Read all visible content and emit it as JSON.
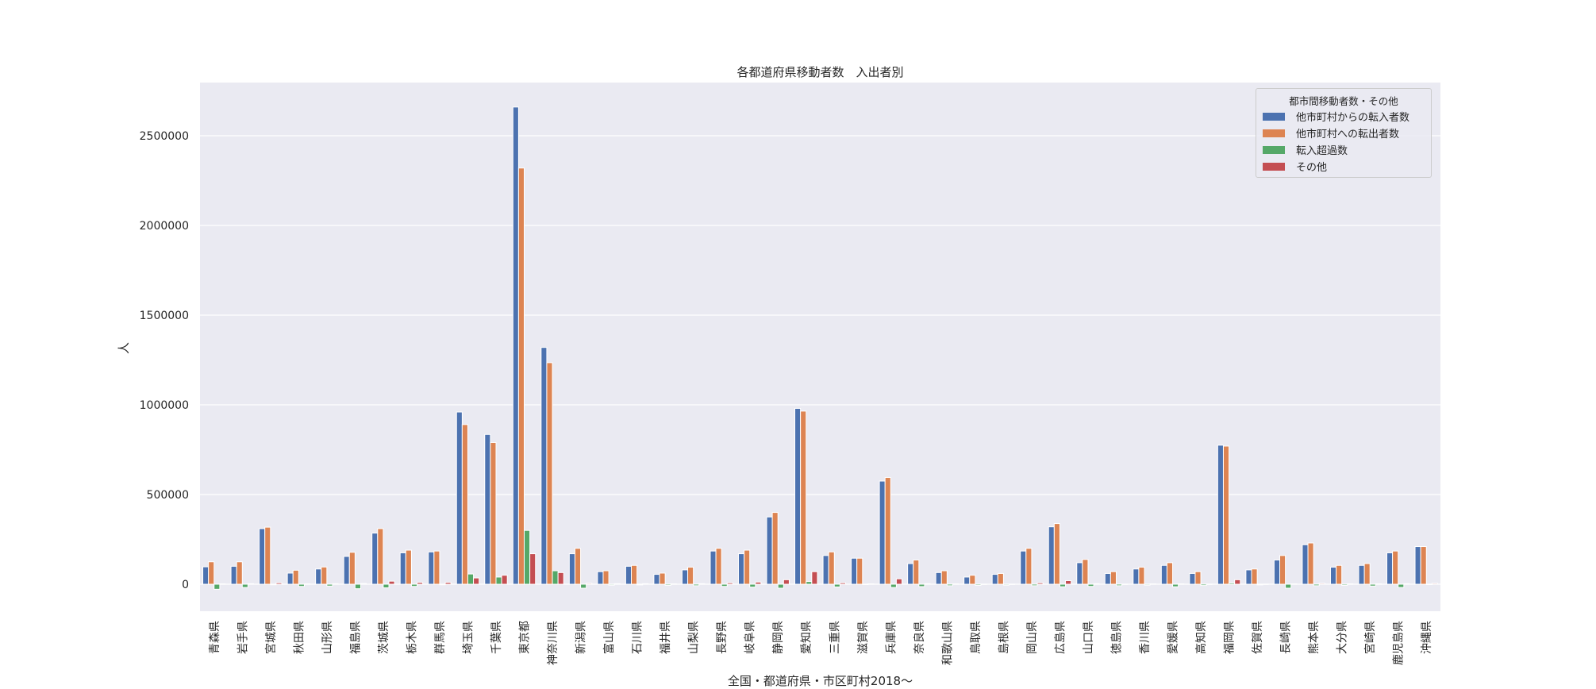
{
  "chart_data": {
    "type": "bar",
    "title": "各都道府県移動者数　入出者別",
    "xlabel": "全国・都道府県・市区町村2018〜",
    "ylabel": "人",
    "ylim": [
      -150000,
      2750000
    ],
    "yticks": [
      0,
      500000,
      1000000,
      1500000,
      2000000,
      2500000
    ],
    "ytick_labels": [
      "0",
      "500000",
      "1000000",
      "1500000",
      "2000000",
      "2500000"
    ],
    "grid": true,
    "legend_position": "upper right",
    "legend_title": "都市間移動者数・その他",
    "categories": [
      "青森県",
      "岩手県",
      "宮城県",
      "秋田県",
      "山形県",
      "福島県",
      "茨城県",
      "栃木県",
      "群馬県",
      "埼玉県",
      "千葉県",
      "東京都",
      "神奈川県",
      "新潟県",
      "富山県",
      "石川県",
      "福井県",
      "山梨県",
      "長野県",
      "岐阜県",
      "静岡県",
      "愛知県",
      "三重県",
      "滋賀県",
      "兵庫県",
      "奈良県",
      "和歌山県",
      "鳥取県",
      "島根県",
      "岡山県",
      "広島県",
      "山口県",
      "徳島県",
      "香川県",
      "愛媛県",
      "高知県",
      "福岡県",
      "佐賀県",
      "長崎県",
      "熊本県",
      "大分県",
      "宮崎県",
      "鹿児島県",
      "沖縄県"
    ],
    "series": [
      {
        "name": "他市町村からの転入者数",
        "color": "#4c72b0",
        "values": [
          97000,
          100000,
          310000,
          62000,
          85000,
          155000,
          285000,
          175000,
          180000,
          960000,
          835000,
          2660000,
          1320000,
          170000,
          70000,
          100000,
          55000,
          80000,
          185000,
          170000,
          375000,
          980000,
          160000,
          145000,
          575000,
          115000,
          65000,
          40000,
          55000,
          185000,
          320000,
          120000,
          60000,
          85000,
          105000,
          60000,
          775000,
          80000,
          135000,
          220000,
          95000,
          105000,
          175000,
          210000
        ]
      },
      {
        "name": "他市町村への転出者数",
        "color": "#dd8452",
        "values": [
          125000,
          125000,
          318000,
          78000,
          96000,
          178000,
          310000,
          190000,
          185000,
          890000,
          790000,
          2320000,
          1235000,
          200000,
          75000,
          105000,
          62000,
          95000,
          200000,
          190000,
          400000,
          965000,
          180000,
          145000,
          595000,
          135000,
          75000,
          50000,
          60000,
          200000,
          338000,
          138000,
          70000,
          95000,
          120000,
          70000,
          770000,
          85000,
          160000,
          230000,
          105000,
          115000,
          185000,
          210000
        ]
      },
      {
        "name": "転入超過数",
        "color": "#55a868",
        "values": [
          -28000,
          -18000,
          -3000,
          -12000,
          -10000,
          -25000,
          -20000,
          -12000,
          -3000,
          57000,
          40000,
          300000,
          75000,
          -22000,
          -5000,
          -4000,
          -6000,
          -8000,
          -12000,
          -16000,
          -22000,
          15000,
          -15000,
          -2000,
          -18000,
          -13000,
          -8000,
          -6000,
          -5000,
          -8000,
          -14000,
          -12000,
          -8000,
          -5000,
          -14000,
          -7000,
          7000,
          -4000,
          -22000,
          -8000,
          -6000,
          -10000,
          -18000,
          -1000
        ]
      },
      {
        "name": "その他",
        "color": "#c44e52",
        "values": [
          2000,
          3000,
          8000,
          2000,
          3000,
          4000,
          17000,
          10000,
          10000,
          35000,
          50000,
          170000,
          65000,
          5000,
          3000,
          3000,
          2000,
          3000,
          8000,
          12000,
          25000,
          70000,
          8000,
          2000,
          30000,
          3000,
          2000,
          1000,
          1000,
          8000,
          20000,
          3000,
          1000,
          2000,
          2000,
          1000,
          25000,
          1000,
          2000,
          5000,
          2000,
          2000,
          3000,
          5000
        ]
      }
    ]
  }
}
